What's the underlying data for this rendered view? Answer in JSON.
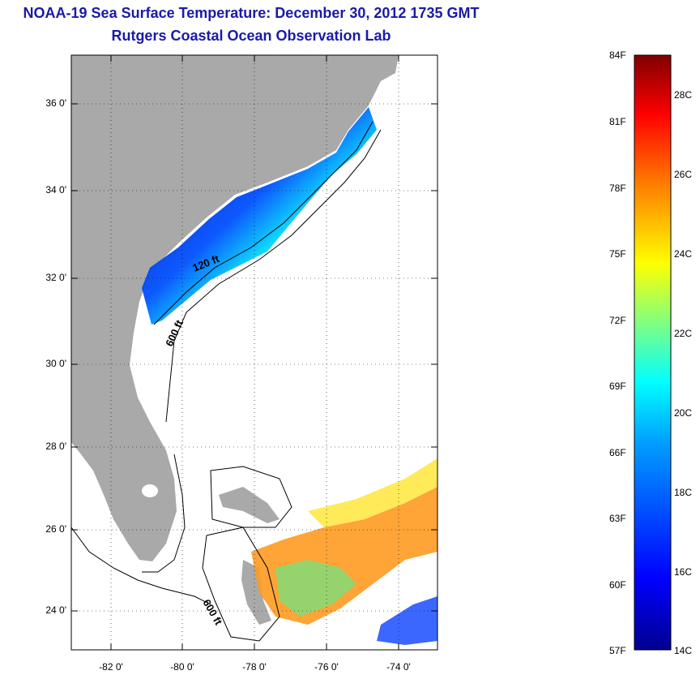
{
  "header": {
    "title": "NOAA-19 Sea Surface Temperature:  December 30, 2012 1735 GMT",
    "subtitle": "Rutgers Coastal Ocean Observation Lab"
  },
  "map": {
    "lat_labels": [
      "36 0'",
      "34 0'",
      "32 0'",
      "30 0'",
      "28 0'",
      "26 0'",
      "24 0'"
    ],
    "lon_labels": [
      "-82 0'",
      "-80 0'",
      "-78 0'",
      "-76 0'",
      "-74 0'"
    ],
    "isobath_labels": [
      "120 ft",
      "600 ft",
      "600 ft"
    ],
    "colors": {
      "land": "#a9a9a9",
      "water": "#ffffff",
      "contour": "#000000",
      "title": "#1a1aa8"
    }
  },
  "colorbar": {
    "fahrenheit": [
      "84F",
      "81F",
      "78F",
      "75F",
      "72F",
      "69F",
      "66F",
      "63F",
      "60F",
      "57F"
    ],
    "celsius": [
      "28C",
      "26C",
      "24C",
      "22C",
      "20C",
      "18C",
      "16C",
      "14C"
    ],
    "colors": [
      "#00008f",
      "#0000ff",
      "#0080ff",
      "#00ffff",
      "#80ff80",
      "#ffff00",
      "#ff8000",
      "#ff0000",
      "#800000"
    ]
  }
}
